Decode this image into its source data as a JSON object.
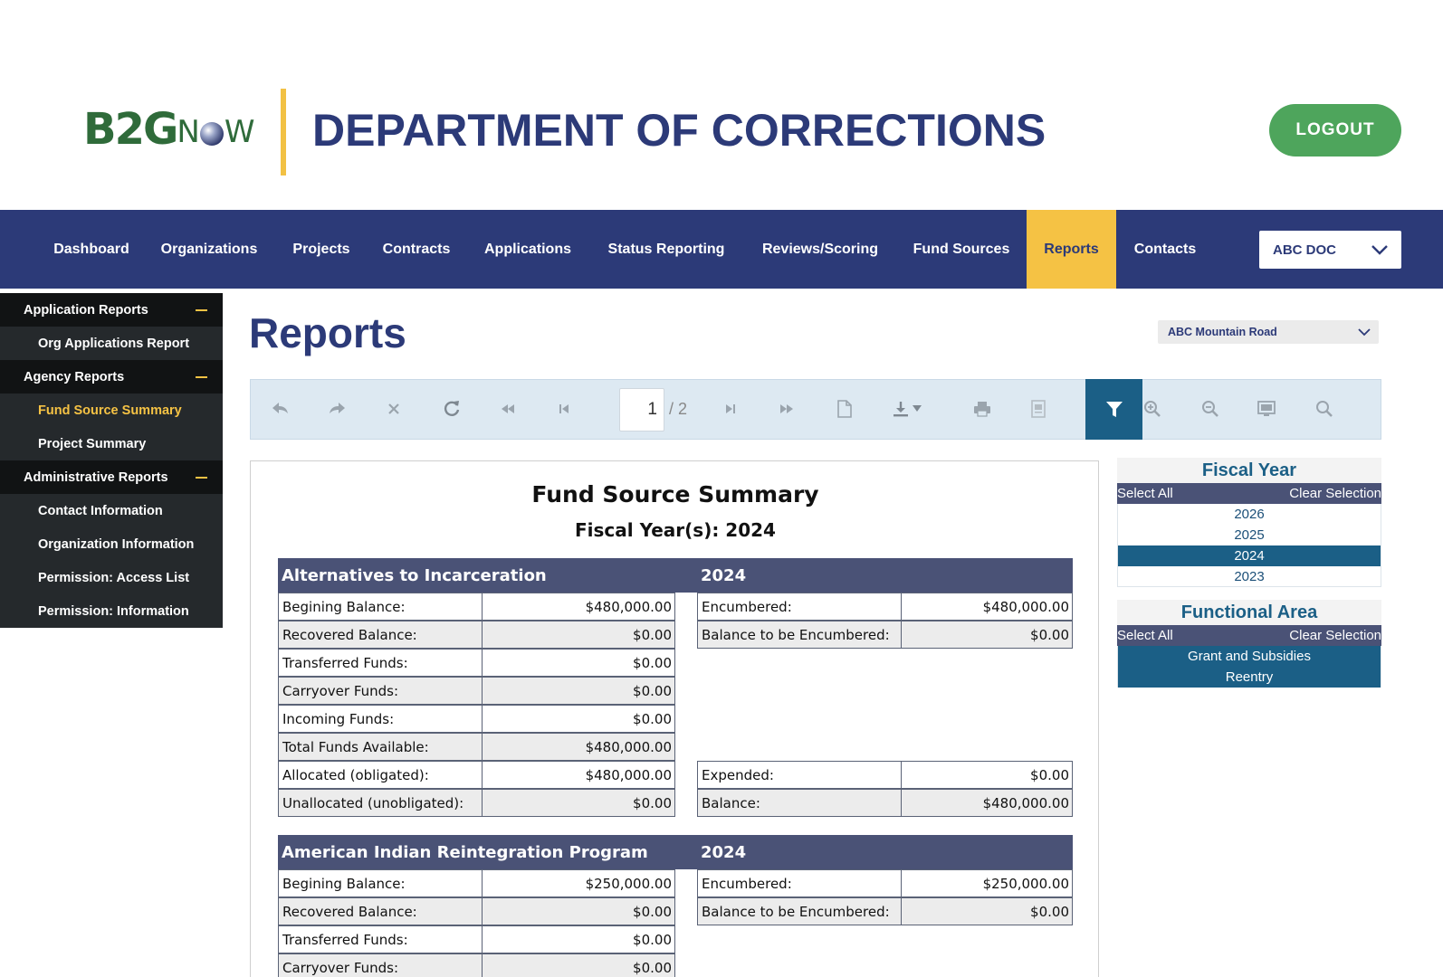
{
  "header": {
    "logo_main": "B2G",
    "logo_suffix_n": "N",
    "logo_suffix_w": "W",
    "title": "DEPARTMENT OF CORRECTIONS",
    "logout_label": "LOGOUT"
  },
  "nav": {
    "items": [
      {
        "label": "Dashboard"
      },
      {
        "label": "Organizations"
      },
      {
        "label": "Projects"
      },
      {
        "label": "Contracts"
      },
      {
        "label": "Applications"
      },
      {
        "label": "Status Reporting"
      },
      {
        "label": "Reviews/Scoring"
      },
      {
        "label": "Fund Sources"
      },
      {
        "label": "Reports"
      },
      {
        "label": "Contacts"
      }
    ],
    "active": "Reports",
    "org_select": "ABC DOC"
  },
  "sidebar": {
    "sections": [
      {
        "label": "Application Reports",
        "items": [
          "Org Applications Report"
        ]
      },
      {
        "label": "Agency Reports",
        "items": [
          "Fund Source Summary",
          "Project Summary"
        ]
      },
      {
        "label": "Administrative Reports",
        "items": [
          "Contact Information",
          "Organization Information",
          "Permission: Access List",
          "Permission: Information"
        ]
      }
    ],
    "active_item": "Fund Source Summary"
  },
  "main": {
    "title": "Reports",
    "site_select": "ABC Mountain Road"
  },
  "toolbar": {
    "page_current": "1",
    "page_total": "/ 2",
    "icons": [
      "back-icon",
      "forward-icon",
      "cancel-icon",
      "refresh-icon",
      "first-page-icon",
      "previous-page-icon",
      "next-page-icon",
      "last-page-icon",
      "document-icon",
      "download-icon",
      "print-icon",
      "print-preview-icon",
      "filter-icon",
      "zoom-in-icon",
      "zoom-out-icon",
      "full-screen-icon",
      "search-icon"
    ]
  },
  "report": {
    "title": "Fund Source Summary",
    "subtitle": "Fiscal Year(s): 2024",
    "blocks": [
      {
        "name": "Alternatives to Incarceration",
        "year": "2024",
        "left": [
          {
            "label": "Begining Balance:",
            "value": "$480,000.00"
          },
          {
            "label": "Recovered Balance:",
            "value": "$0.00"
          },
          {
            "label": "Transferred Funds:",
            "value": "$0.00"
          },
          {
            "label": "Carryover Funds:",
            "value": "$0.00"
          },
          {
            "label": "Incoming Funds:",
            "value": "$0.00"
          },
          {
            "label": "Total Funds Available:",
            "value": "$480,000.00"
          },
          {
            "label": "Allocated (obligated):",
            "value": "$480,000.00"
          },
          {
            "label": "Unallocated (unobligated):",
            "value": "$0.00"
          }
        ],
        "right_top": [
          {
            "label": "Encumbered:",
            "value": "$480,000.00"
          },
          {
            "label": "Balance to be Encumbered:",
            "value": "$0.00"
          }
        ],
        "right_bottom": [
          {
            "label": "Expended:",
            "value": "$0.00"
          },
          {
            "label": "Balance:",
            "value": "$480,000.00"
          }
        ]
      },
      {
        "name": "American Indian Reintegration Program",
        "year": "2024",
        "left": [
          {
            "label": "Begining Balance:",
            "value": "$250,000.00"
          },
          {
            "label": "Recovered Balance:",
            "value": "$0.00"
          },
          {
            "label": "Transferred Funds:",
            "value": "$0.00"
          },
          {
            "label": "Carryover Funds:",
            "value": "$0.00"
          }
        ],
        "right_top": [
          {
            "label": "Encumbered:",
            "value": "$250,000.00"
          },
          {
            "label": "Balance to be Encumbered:",
            "value": "$0.00"
          }
        ]
      }
    ]
  },
  "filters": {
    "fiscal_year": {
      "title": "Fiscal Year",
      "select_all": "Select All",
      "clear": "Clear Selection",
      "options": [
        "2026",
        "2025",
        "2024",
        "2023"
      ],
      "selected": [
        "2024"
      ]
    },
    "functional_area": {
      "title": "Functional Area",
      "select_all": "Select All",
      "clear": "Clear Selection",
      "options": [
        "Grant and Subsidies",
        "Reentry"
      ],
      "selected": [
        "Grant and Subsidies",
        "Reentry"
      ]
    }
  }
}
